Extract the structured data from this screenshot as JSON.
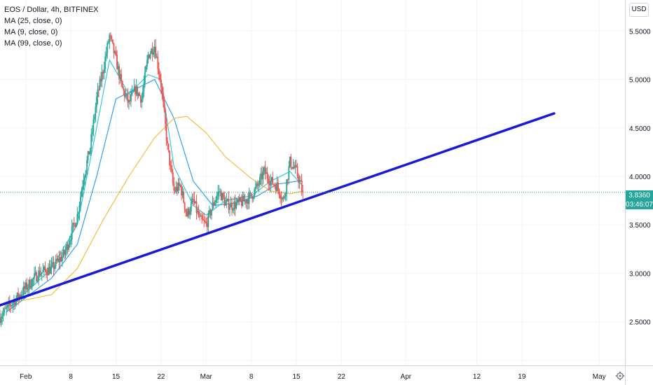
{
  "legend": {
    "title": "EOS / Dollar, 4h, BITFINEX",
    "ma1": "MA (25, close, 0)",
    "ma2": "MA (9, close, 0)",
    "ma3": "MA (99, close, 0)"
  },
  "currency_button": "USD",
  "last_price": {
    "value": "3.8360",
    "countdown": "03:46:07"
  },
  "colors": {
    "up": "#26a69a",
    "down": "#ef5350",
    "ma25": "#2196f3",
    "ma9": "#26c6da",
    "ma99": "#f5b730",
    "trendline": "#1a1ad6",
    "grid": "#f0f3fa",
    "axis_text": "#131722"
  },
  "icons": {
    "settings": "gear-icon"
  },
  "chart_data": {
    "type": "candlestick",
    "title": "EOS / Dollar, 4h, BITFINEX",
    "y_axis_side": "right",
    "ylim": [
      2.05,
      5.82
    ],
    "yticks": [
      "5.5000",
      "5.0000",
      "4.5000",
      "4.0000",
      "3.5000",
      "3.0000",
      "2.5000"
    ],
    "ytick_values": [
      5.5,
      5.0,
      4.5,
      4.0,
      3.5,
      3.0,
      2.5
    ],
    "x_tick_labels": [
      "Feb",
      "8",
      "15",
      "22",
      "Mar",
      "8",
      "15",
      "22",
      "Apr",
      "12",
      "19",
      "May"
    ],
    "x_tick_dates": [
      "2021-02-01",
      "2021-02-08",
      "2021-02-15",
      "2021-02-22",
      "2021-03-01",
      "2021-03-08",
      "2021-03-15",
      "2021-03-22",
      "2021-04-01",
      "2021-04-12",
      "2021-04-19",
      "2021-05-01"
    ],
    "xlim": [
      "2021-01-28",
      "2021-05-05"
    ],
    "grid": true,
    "last_price_line": 3.836,
    "close_path": [
      [
        "2021-01-28",
        2.55
      ],
      [
        "2021-01-30",
        2.7
      ],
      [
        "2021-02-01",
        2.85
      ],
      [
        "2021-02-03",
        3.0
      ],
      [
        "2021-02-05",
        3.05
      ],
      [
        "2021-02-07",
        3.2
      ],
      [
        "2021-02-09",
        3.6
      ],
      [
        "2021-02-10",
        4.0
      ],
      [
        "2021-02-11",
        4.3
      ],
      [
        "2021-02-12",
        4.8
      ],
      [
        "2021-02-13",
        5.1
      ],
      [
        "2021-02-14",
        5.45
      ],
      [
        "2021-02-15",
        5.2
      ],
      [
        "2021-02-16",
        4.9
      ],
      [
        "2021-02-17",
        4.75
      ],
      [
        "2021-02-18",
        4.9
      ],
      [
        "2021-02-19",
        4.8
      ],
      [
        "2021-02-20",
        5.25
      ],
      [
        "2021-02-21",
        5.35
      ],
      [
        "2021-02-22",
        4.95
      ],
      [
        "2021-02-23",
        4.3
      ],
      [
        "2021-02-24",
        3.85
      ],
      [
        "2021-02-25",
        3.9
      ],
      [
        "2021-02-26",
        3.6
      ],
      [
        "2021-02-27",
        3.75
      ],
      [
        "2021-02-28",
        3.55
      ],
      [
        "2021-03-01",
        3.5
      ],
      [
        "2021-03-02",
        3.7
      ],
      [
        "2021-03-03",
        3.85
      ],
      [
        "2021-03-04",
        3.72
      ],
      [
        "2021-03-05",
        3.7
      ],
      [
        "2021-03-06",
        3.72
      ],
      [
        "2021-03-07",
        3.75
      ],
      [
        "2021-03-08",
        3.8
      ],
      [
        "2021-03-09",
        3.9
      ],
      [
        "2021-03-10",
        4.05
      ],
      [
        "2021-03-11",
        3.95
      ],
      [
        "2021-03-12",
        3.9
      ],
      [
        "2021-03-13",
        3.75
      ],
      [
        "2021-03-14",
        4.15
      ],
      [
        "2021-03-15",
        4.05
      ],
      [
        "2021-03-16",
        3.836
      ]
    ],
    "series": [
      {
        "name": "MA (25, close, 0)",
        "color": "#2196f3",
        "points": [
          [
            "2021-01-29",
            2.6
          ],
          [
            "2021-02-01",
            2.75
          ],
          [
            "2021-02-05",
            2.95
          ],
          [
            "2021-02-09",
            3.3
          ],
          [
            "2021-02-12",
            4.0
          ],
          [
            "2021-02-15",
            4.8
          ],
          [
            "2021-02-18",
            4.9
          ],
          [
            "2021-02-21",
            5.0
          ],
          [
            "2021-02-24",
            4.6
          ],
          [
            "2021-02-27",
            3.95
          ],
          [
            "2021-03-02",
            3.7
          ],
          [
            "2021-03-05",
            3.72
          ],
          [
            "2021-03-09",
            3.8
          ],
          [
            "2021-03-12",
            3.92
          ],
          [
            "2021-03-15",
            3.95
          ],
          [
            "2021-03-16",
            3.95
          ]
        ]
      },
      {
        "name": "MA (9, close, 0)",
        "color": "#26c6da",
        "points": [
          [
            "2021-01-29",
            2.65
          ],
          [
            "2021-02-01",
            2.8
          ],
          [
            "2021-02-05",
            3.05
          ],
          [
            "2021-02-09",
            3.5
          ],
          [
            "2021-02-12",
            4.5
          ],
          [
            "2021-02-14",
            5.2
          ],
          [
            "2021-02-17",
            4.85
          ],
          [
            "2021-02-20",
            5.05
          ],
          [
            "2021-02-22",
            5.0
          ],
          [
            "2021-02-24",
            4.1
          ],
          [
            "2021-02-27",
            3.7
          ],
          [
            "2021-03-01",
            3.6
          ],
          [
            "2021-03-04",
            3.75
          ],
          [
            "2021-03-08",
            3.8
          ],
          [
            "2021-03-11",
            3.95
          ],
          [
            "2021-03-14",
            4.05
          ],
          [
            "2021-03-16",
            3.9
          ]
        ]
      },
      {
        "name": "MA (99, close, 0)",
        "color": "#f5b730",
        "points": [
          [
            "2021-01-30",
            2.7
          ],
          [
            "2021-02-05",
            2.78
          ],
          [
            "2021-02-09",
            3.05
          ],
          [
            "2021-02-13",
            3.55
          ],
          [
            "2021-02-17",
            4.0
          ],
          [
            "2021-02-21",
            4.4
          ],
          [
            "2021-02-24",
            4.6
          ],
          [
            "2021-02-26",
            4.62
          ],
          [
            "2021-03-01",
            4.45
          ],
          [
            "2021-03-04",
            4.2
          ],
          [
            "2021-03-08",
            3.98
          ],
          [
            "2021-03-11",
            3.85
          ],
          [
            "2021-03-14",
            3.82
          ],
          [
            "2021-03-16",
            3.85
          ]
        ]
      }
    ],
    "trendline": {
      "from": [
        "2021-01-28",
        2.67
      ],
      "to": [
        "2021-04-24",
        4.65
      ]
    }
  }
}
